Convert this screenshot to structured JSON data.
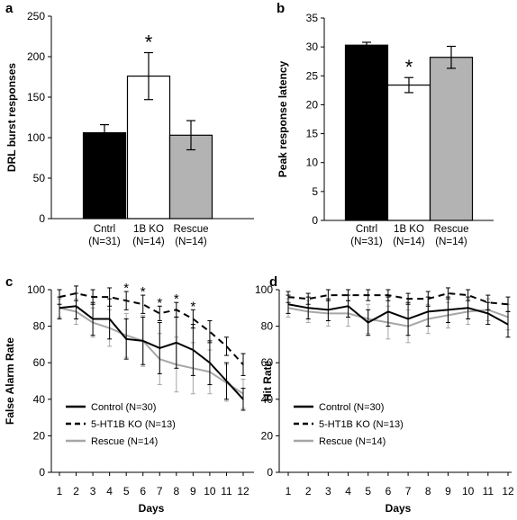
{
  "chart_data": [
    {
      "panel": "a",
      "type": "bar",
      "ylabel": "DRL burst responses",
      "ylim": [
        0,
        250
      ],
      "yticks": [
        0,
        50,
        100,
        150,
        200,
        250
      ],
      "categories": [
        "Cntrl",
        "1B KO",
        "Rescue"
      ],
      "category_n": [
        "(N=31)",
        "(N=14)",
        "(N=14)"
      ],
      "values": [
        106,
        176,
        103
      ],
      "errors": [
        10,
        29,
        18
      ],
      "colors": [
        "#000000",
        "#ffffff",
        "#b3b3b3"
      ],
      "significance": [
        {
          "category": "1B KO",
          "label": "*"
        }
      ]
    },
    {
      "panel": "b",
      "type": "bar",
      "ylabel": "Peak response latency",
      "ylim": [
        0,
        35
      ],
      "yticks": [
        0,
        5,
        10,
        15,
        20,
        25,
        30,
        35
      ],
      "categories": [
        "Cntrl",
        "1B KO",
        "Rescue"
      ],
      "category_n": [
        "(N=31)",
        "(N=14)",
        "(N=14)"
      ],
      "values": [
        30.3,
        23.4,
        28.2
      ],
      "errors": [
        0.5,
        1.3,
        1.9
      ],
      "colors": [
        "#000000",
        "#ffffff",
        "#b3b3b3"
      ],
      "significance": [
        {
          "category": "1B KO",
          "label": "*"
        }
      ]
    },
    {
      "panel": "c",
      "type": "line",
      "xlabel": "Days",
      "ylabel": "False Alarm Rate",
      "ylim": [
        0,
        100
      ],
      "yticks": [
        0,
        20,
        40,
        60,
        80,
        100
      ],
      "x": [
        1,
        2,
        3,
        4,
        5,
        6,
        7,
        8,
        9,
        10,
        11,
        12
      ],
      "series": [
        {
          "name": "Control (N=30)",
          "style": "solid",
          "color": "#000000",
          "values": [
            90,
            91,
            84,
            84,
            73,
            72,
            68,
            71,
            67,
            60,
            50,
            40
          ],
          "errors": [
            6,
            7,
            9,
            11,
            11,
            13,
            14,
            14,
            14,
            12,
            10,
            6
          ]
        },
        {
          "name": "5-HT1B KO (N=13)",
          "style": "dashed",
          "color": "#000000",
          "values": [
            96,
            98,
            96,
            96,
            94,
            92,
            87,
            89,
            84,
            77,
            69,
            59
          ],
          "errors": [
            4,
            4,
            4,
            5,
            5,
            5,
            4,
            4,
            5,
            6,
            5,
            6
          ]
        },
        {
          "name": "Rescue (N=14)",
          "style": "solid",
          "color": "#a6a6a6",
          "values": [
            90,
            88,
            82,
            79,
            75,
            72,
            62,
            59,
            57,
            55,
            49,
            43
          ],
          "errors": [
            5,
            7,
            8,
            10,
            12,
            14,
            14,
            15,
            14,
            12,
            10,
            8
          ]
        }
      ],
      "significance_days": [
        5,
        6,
        7,
        8,
        9
      ],
      "significance_label": "*",
      "legend": "bottom-left"
    },
    {
      "panel": "d",
      "type": "line",
      "xlabel": "Days",
      "ylabel": "Hit Rate",
      "ylim": [
        0,
        100
      ],
      "yticks": [
        0,
        20,
        40,
        60,
        80,
        100
      ],
      "x": [
        1,
        2,
        3,
        4,
        5,
        6,
        7,
        8,
        9,
        10,
        11,
        12
      ],
      "series": [
        {
          "name": "Control (N=30)",
          "style": "solid",
          "color": "#000000",
          "values": [
            92,
            90,
            89,
            91,
            82,
            88,
            84,
            88,
            89,
            90,
            87,
            81
          ],
          "errors": [
            5,
            6,
            6,
            6,
            7,
            8,
            9,
            8,
            7,
            6,
            6,
            7
          ]
        },
        {
          "name": "5-HT1B KO (N=13)",
          "style": "dashed",
          "color": "#000000",
          "values": [
            96,
            95,
            97,
            97,
            97,
            97,
            95,
            95,
            98,
            97,
            93,
            92
          ],
          "errors": [
            3,
            3,
            3,
            3,
            3,
            3,
            3,
            4,
            3,
            3,
            4,
            4
          ]
        },
        {
          "name": "Rescue (N=14)",
          "style": "solid",
          "color": "#a6a6a6",
          "values": [
            90,
            88,
            87,
            87,
            84,
            82,
            80,
            84,
            86,
            88,
            89,
            85
          ],
          "errors": [
            5,
            6,
            7,
            7,
            8,
            9,
            9,
            8,
            7,
            7,
            6,
            7
          ]
        }
      ],
      "legend": "bottom-left"
    }
  ]
}
